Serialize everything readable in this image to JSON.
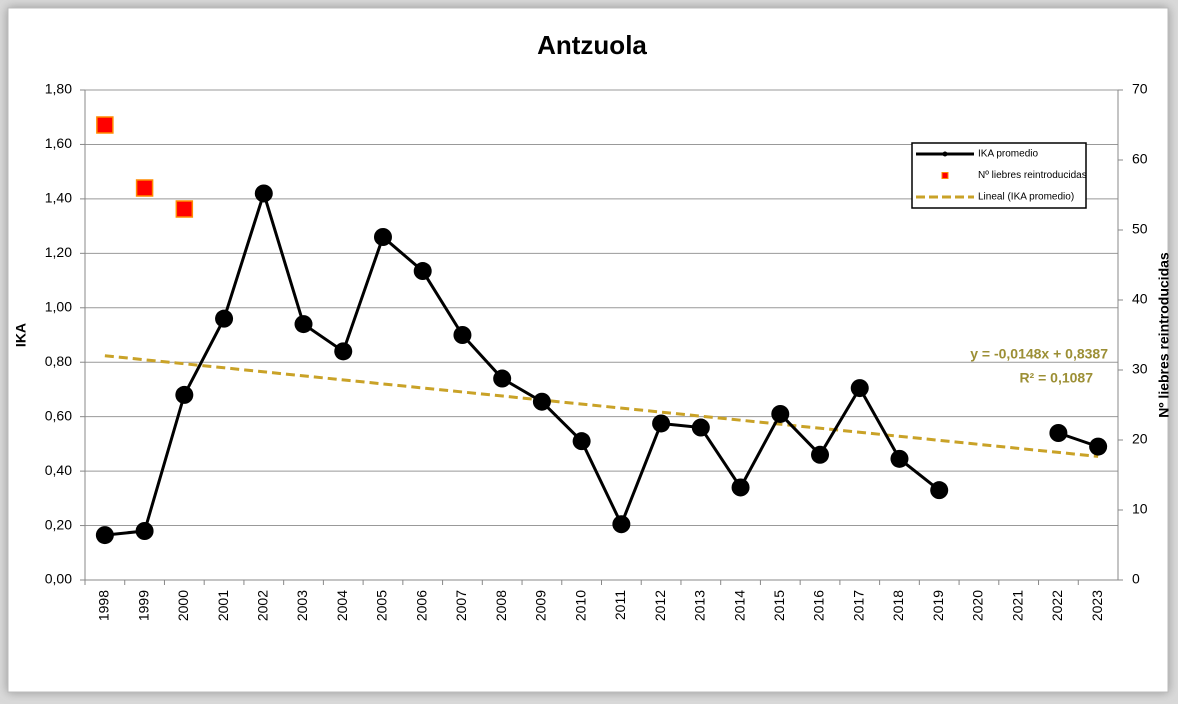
{
  "chart_data": {
    "type": "line",
    "title": "Antzuola",
    "y_label": "IKA",
    "y2_label": "Nº liebres reintroducidas",
    "categories": [
      "1998",
      "1999",
      "2000",
      "2001",
      "2002",
      "2003",
      "2004",
      "2005",
      "2006",
      "2007",
      "2008",
      "2009",
      "2010",
      "2011",
      "2012",
      "2013",
      "2014",
      "2015",
      "2016",
      "2017",
      "2018",
      "2019",
      "2020",
      "2021",
      "2022",
      "2023"
    ],
    "series": [
      {
        "name": "IKA promedio",
        "color": "#000000",
        "marker": "circle",
        "values": [
          0.165,
          0.18,
          0.68,
          0.96,
          1.42,
          0.94,
          0.84,
          1.26,
          1.135,
          0.9,
          0.74,
          0.655,
          0.51,
          0.205,
          0.575,
          0.56,
          0.34,
          0.61,
          0.46,
          0.705,
          0.445,
          0.33,
          null,
          null,
          0.54,
          0.49
        ]
      },
      {
        "name": "Nº liebres reintroducidas",
        "color": "#ff0000",
        "marker": "square",
        "axis": "y2",
        "values": [
          65,
          56,
          53,
          null,
          null,
          null,
          null,
          null,
          null,
          null,
          null,
          null,
          null,
          null,
          null,
          null,
          null,
          null,
          null,
          null,
          null,
          null,
          null,
          null,
          null,
          null
        ]
      }
    ],
    "trendline": {
      "name": "Lineal (IKA promedio)",
      "color": "#c9a227",
      "slope": -0.0148,
      "intercept": 0.8387,
      "label": "y = -0,0148x + 0,8387",
      "r2_label": "R² = 0,1087"
    },
    "ylim": [
      0,
      1.8
    ],
    "yticks": [
      {
        "value": 0,
        "label": "0,00"
      },
      {
        "value": 0.2,
        "label": "0,20"
      },
      {
        "value": 0.4,
        "label": "0,40"
      },
      {
        "value": 0.6,
        "label": "0,60"
      },
      {
        "value": 0.8,
        "label": "0,80"
      },
      {
        "value": 1.0,
        "label": "1,00"
      },
      {
        "value": 1.2,
        "label": "1,20"
      },
      {
        "value": 1.4,
        "label": "1,40"
      },
      {
        "value": 1.6,
        "label": "1,60"
      },
      {
        "value": 1.8,
        "label": "1,80"
      }
    ],
    "y2lim": [
      0,
      70
    ],
    "y2ticks": [
      0,
      10,
      20,
      30,
      40,
      50,
      60,
      70
    ],
    "grid": true,
    "legend": "top-right"
  }
}
